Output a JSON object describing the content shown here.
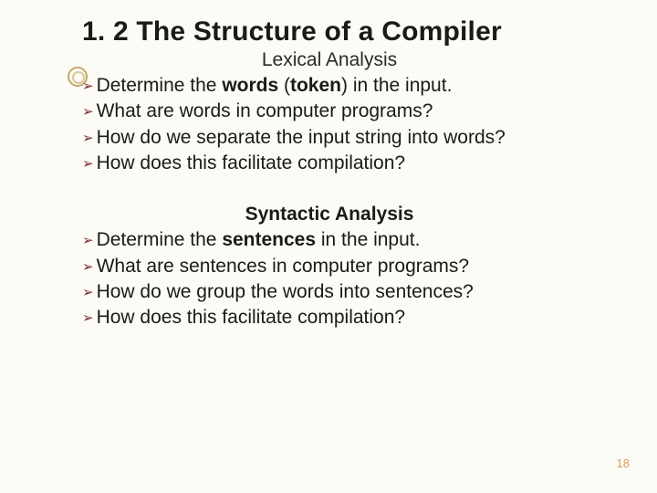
{
  "title": "1. 2 The Structure of a Compiler",
  "section1": {
    "heading": "Lexical Analysis",
    "items": [
      {
        "pre": "Determine the ",
        "bold1": "words",
        "mid": " (",
        "bold2": "token",
        "post": ") in the input."
      },
      {
        "text": "What are words in computer programs?"
      },
      {
        "text": "How do we separate the input string into words?"
      },
      {
        "text": "How does this facilitate compilation?"
      }
    ]
  },
  "section2": {
    "heading": "Syntactic Analysis",
    "items": [
      {
        "pre": "Determine the ",
        "bold1": "sentences",
        "post": " in the input."
      },
      {
        "text": "What are sentences in computer programs?"
      },
      {
        "text": "How do we group the words into sentences?"
      },
      {
        "text": "How does this facilitate compilation?"
      }
    ]
  },
  "bullet_glyph": "➢",
  "page_number": "18",
  "colors": {
    "background": "#fdfbf5",
    "bullet_marker": "#7a2e2e",
    "deco_ring": "#c4a86a",
    "page_num": "#d9a05a",
    "text": "#1a1a1a"
  }
}
